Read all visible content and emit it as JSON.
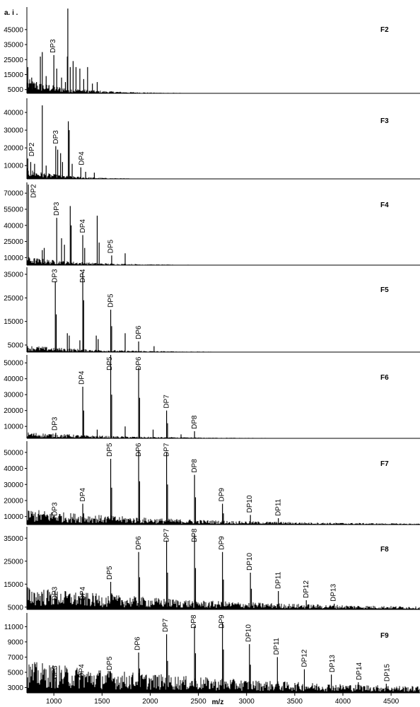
{
  "y_unit_label": "a. i .",
  "x_axis_label": "m/z",
  "colors": {
    "trace": "#000000",
    "axis": "#000000",
    "background": "#ffffff"
  },
  "x_ticks": [
    "1000",
    "1500",
    "2000",
    "2500",
    "3000",
    "3500",
    "4000",
    "4500"
  ],
  "chart_data": [
    {
      "type": "line",
      "panel_label": "F2",
      "xlim": [
        720,
        4800
      ],
      "ylim": [
        2500,
        60000
      ],
      "y_ticks": [
        5000,
        15000,
        25000,
        35000,
        45000
      ],
      "peaks": [
        {
          "x": 730,
          "y": 20000
        },
        {
          "x": 770,
          "y": 13000
        },
        {
          "x": 820,
          "y": 10000
        },
        {
          "x": 860,
          "y": 27000
        },
        {
          "x": 880,
          "y": 30000
        },
        {
          "x": 920,
          "y": 14000
        },
        {
          "x": 950,
          "y": 8000
        },
        {
          "x": 1000,
          "y": 28000
        },
        {
          "x": 1030,
          "y": 19000
        },
        {
          "x": 1080,
          "y": 13000
        },
        {
          "x": 1120,
          "y": 10000
        },
        {
          "x": 1140,
          "y": 27000
        },
        {
          "x": 1145,
          "y": 59000
        },
        {
          "x": 1170,
          "y": 20000
        },
        {
          "x": 1200,
          "y": 24000
        },
        {
          "x": 1230,
          "y": 20000
        },
        {
          "x": 1270,
          "y": 19000
        },
        {
          "x": 1310,
          "y": 12000
        },
        {
          "x": 1350,
          "y": 20000
        },
        {
          "x": 1400,
          "y": 9000
        },
        {
          "x": 1450,
          "y": 10000
        }
      ],
      "noise_peak": 10000,
      "noise_decay": 450,
      "peak_labels": [
        {
          "text": "DP3",
          "x": 990
        }
      ]
    },
    {
      "type": "line",
      "panel_label": "F3",
      "xlim": [
        720,
        4800
      ],
      "ylim": [
        2500,
        48000
      ],
      "y_ticks": [
        10000,
        20000,
        30000,
        40000
      ],
      "peaks": [
        {
          "x": 730,
          "y": 14000
        },
        {
          "x": 760,
          "y": 12000
        },
        {
          "x": 800,
          "y": 11000
        },
        {
          "x": 880,
          "y": 44000
        },
        {
          "x": 920,
          "y": 10000
        },
        {
          "x": 1020,
          "y": 21000
        },
        {
          "x": 1040,
          "y": 19000
        },
        {
          "x": 1070,
          "y": 17000
        },
        {
          "x": 1090,
          "y": 12000
        },
        {
          "x": 1150,
          "y": 35000
        },
        {
          "x": 1160,
          "y": 30000
        },
        {
          "x": 1190,
          "y": 11000
        },
        {
          "x": 1280,
          "y": 9000
        },
        {
          "x": 1330,
          "y": 6500
        },
        {
          "x": 1420,
          "y": 6000
        }
      ],
      "noise_peak": 6000,
      "noise_decay": 350,
      "peak_labels": [
        {
          "text": "DP2",
          "x": 770
        },
        {
          "text": "DP3",
          "x": 1020
        },
        {
          "text": "DP4",
          "x": 1290
        }
      ]
    },
    {
      "type": "line",
      "panel_label": "F4",
      "xlim": [
        720,
        4800
      ],
      "ylim": [
        3000,
        80000
      ],
      "y_ticks": [
        10000,
        25000,
        40000,
        55000,
        70000
      ],
      "peaks": [
        {
          "x": 735,
          "y": 78000
        },
        {
          "x": 880,
          "y": 17000
        },
        {
          "x": 900,
          "y": 19000
        },
        {
          "x": 1030,
          "y": 47000
        },
        {
          "x": 1080,
          "y": 28000
        },
        {
          "x": 1110,
          "y": 22000
        },
        {
          "x": 1170,
          "y": 58000
        },
        {
          "x": 1180,
          "y": 40000
        },
        {
          "x": 1300,
          "y": 31000
        },
        {
          "x": 1320,
          "y": 19000
        },
        {
          "x": 1450,
          "y": 49000
        },
        {
          "x": 1470,
          "y": 24000
        },
        {
          "x": 1600,
          "y": 12000
        },
        {
          "x": 1740,
          "y": 14000
        }
      ],
      "noise_peak": 8000,
      "noise_decay": 550,
      "peak_labels": [
        {
          "text": "DP2",
          "x": 790
        },
        {
          "text": "DP3",
          "x": 1030
        },
        {
          "text": "DP4",
          "x": 1300
        },
        {
          "text": "DP5",
          "x": 1590
        }
      ]
    },
    {
      "type": "line",
      "panel_label": "F5",
      "xlim": [
        720,
        4800
      ],
      "ylim": [
        2000,
        38000
      ],
      "y_ticks": [
        5000,
        15000,
        25000,
        35000
      ],
      "peaks": [
        {
          "x": 1015,
          "y": 32000
        },
        {
          "x": 1025,
          "y": 18000
        },
        {
          "x": 1140,
          "y": 10000
        },
        {
          "x": 1160,
          "y": 9000
        },
        {
          "x": 1270,
          "y": 7000
        },
        {
          "x": 1300,
          "y": 36000
        },
        {
          "x": 1310,
          "y": 24000
        },
        {
          "x": 1440,
          "y": 9000
        },
        {
          "x": 1460,
          "y": 7500
        },
        {
          "x": 1590,
          "y": 20000
        },
        {
          "x": 1600,
          "y": 13000
        },
        {
          "x": 1740,
          "y": 10000
        },
        {
          "x": 1880,
          "y": 6500
        },
        {
          "x": 2040,
          "y": 4500
        }
      ],
      "noise_peak": 3000,
      "noise_decay": 700,
      "peak_labels": [
        {
          "text": "DP3",
          "x": 1010
        },
        {
          "text": "DP4",
          "x": 1300
        },
        {
          "text": "DP5",
          "x": 1590
        },
        {
          "text": "DP6",
          "x": 1880
        }
      ]
    },
    {
      "type": "line",
      "panel_label": "F6",
      "xlim": [
        720,
        4800
      ],
      "ylim": [
        2500,
        55000
      ],
      "y_ticks": [
        10000,
        20000,
        30000,
        40000,
        50000
      ],
      "peaks": [
        {
          "x": 1020,
          "y": 6000
        },
        {
          "x": 1160,
          "y": 5000
        },
        {
          "x": 1300,
          "y": 35000
        },
        {
          "x": 1310,
          "y": 20000
        },
        {
          "x": 1450,
          "y": 8000
        },
        {
          "x": 1590,
          "y": 55000
        },
        {
          "x": 1600,
          "y": 30000
        },
        {
          "x": 1740,
          "y": 10000
        },
        {
          "x": 1880,
          "y": 47000
        },
        {
          "x": 1890,
          "y": 28000
        },
        {
          "x": 2030,
          "y": 8000
        },
        {
          "x": 2170,
          "y": 20000
        },
        {
          "x": 2180,
          "y": 12000
        },
        {
          "x": 2320,
          "y": 5000
        },
        {
          "x": 2460,
          "y": 7000
        }
      ],
      "noise_peak": 4000,
      "noise_decay": 900,
      "peak_labels": [
        {
          "text": "DP3",
          "x": 1010
        },
        {
          "text": "DP4",
          "x": 1290
        },
        {
          "text": "DP5",
          "x": 1580
        },
        {
          "text": "DP6",
          "x": 1880
        },
        {
          "text": "DP7",
          "x": 2170
        },
        {
          "text": "DP8",
          "x": 2460
        }
      ]
    },
    {
      "type": "line",
      "panel_label": "F7",
      "xlim": [
        720,
        4800
      ],
      "ylim": [
        5000,
        57000
      ],
      "y_ticks": [
        10000,
        20000,
        30000,
        40000,
        50000
      ],
      "peaks": [
        {
          "x": 1020,
          "y": 9000
        },
        {
          "x": 1300,
          "y": 18000
        },
        {
          "x": 1310,
          "y": 12000
        },
        {
          "x": 1590,
          "y": 46000
        },
        {
          "x": 1600,
          "y": 28000
        },
        {
          "x": 1880,
          "y": 51000
        },
        {
          "x": 1890,
          "y": 32000
        },
        {
          "x": 2170,
          "y": 50000
        },
        {
          "x": 2180,
          "y": 30000
        },
        {
          "x": 2460,
          "y": 36000
        },
        {
          "x": 2470,
          "y": 22000
        },
        {
          "x": 2750,
          "y": 18000
        },
        {
          "x": 2760,
          "y": 12000
        },
        {
          "x": 3040,
          "y": 11000
        },
        {
          "x": 3330,
          "y": 9000
        }
      ],
      "noise_peak": 10000,
      "noise_decay": 1500,
      "peak_labels": [
        {
          "text": "DP3",
          "x": 1010
        },
        {
          "text": "DP4",
          "x": 1300
        },
        {
          "text": "DP5",
          "x": 1580
        },
        {
          "text": "DP6",
          "x": 1880
        },
        {
          "text": "DP7",
          "x": 2170
        },
        {
          "text": "DP8",
          "x": 2460
        },
        {
          "text": "DP9",
          "x": 2740
        },
        {
          "text": "DP10",
          "x": 3030
        },
        {
          "text": "DP11",
          "x": 3330
        }
      ]
    },
    {
      "type": "line",
      "panel_label": "F8",
      "xlim": [
        720,
        4800
      ],
      "ylim": [
        4000,
        40000
      ],
      "y_ticks": [
        5000,
        15000,
        25000,
        35000
      ],
      "peaks": [
        {
          "x": 1020,
          "y": 7000
        },
        {
          "x": 1300,
          "y": 7000
        },
        {
          "x": 1590,
          "y": 16000
        },
        {
          "x": 1600,
          "y": 11000
        },
        {
          "x": 1880,
          "y": 29000
        },
        {
          "x": 1890,
          "y": 18000
        },
        {
          "x": 2170,
          "y": 34000
        },
        {
          "x": 2180,
          "y": 20000
        },
        {
          "x": 2460,
          "y": 37000
        },
        {
          "x": 2470,
          "y": 22000
        },
        {
          "x": 2750,
          "y": 29000
        },
        {
          "x": 2760,
          "y": 17000
        },
        {
          "x": 3040,
          "y": 20000
        },
        {
          "x": 3050,
          "y": 13000
        },
        {
          "x": 3330,
          "y": 12000
        },
        {
          "x": 3620,
          "y": 8000
        },
        {
          "x": 3910,
          "y": 6500
        }
      ],
      "noise_peak": 10000,
      "noise_decay": 2000,
      "peak_labels": [
        {
          "text": "DP3",
          "x": 1010
        },
        {
          "text": "DP4",
          "x": 1300
        },
        {
          "text": "DP5",
          "x": 1580
        },
        {
          "text": "DP6",
          "x": 1880
        },
        {
          "text": "DP7",
          "x": 2170
        },
        {
          "text": "DP8",
          "x": 2460
        },
        {
          "text": "DP9",
          "x": 2740
        },
        {
          "text": "DP10",
          "x": 3030
        },
        {
          "text": "DP11",
          "x": 3330
        },
        {
          "text": "DP12",
          "x": 3620
        },
        {
          "text": "DP13",
          "x": 3900
        }
      ]
    },
    {
      "type": "line",
      "panel_label": "F9",
      "xlim": [
        720,
        4800
      ],
      "ylim": [
        2300,
        12800
      ],
      "y_ticks": [
        3000,
        5000,
        7000,
        9000,
        11000
      ],
      "peaks": [
        {
          "x": 1020,
          "y": 3800
        },
        {
          "x": 1300,
          "y": 4000
        },
        {
          "x": 1590,
          "y": 5000
        },
        {
          "x": 1880,
          "y": 7600
        },
        {
          "x": 1890,
          "y": 5500
        },
        {
          "x": 2170,
          "y": 10000
        },
        {
          "x": 2180,
          "y": 6500
        },
        {
          "x": 2460,
          "y": 11100
        },
        {
          "x": 2470,
          "y": 7500
        },
        {
          "x": 2750,
          "y": 11500
        },
        {
          "x": 2760,
          "y": 8000
        },
        {
          "x": 3030,
          "y": 8700
        },
        {
          "x": 3040,
          "y": 6000
        },
        {
          "x": 3320,
          "y": 7000
        },
        {
          "x": 3600,
          "y": 5400
        },
        {
          "x": 3880,
          "y": 4700
        },
        {
          "x": 4160,
          "y": 3700
        },
        {
          "x": 4450,
          "y": 3500
        }
      ],
      "noise_peak": 4200,
      "noise_decay": 2600,
      "peak_labels": [
        {
          "text": "DP3",
          "x": 1010
        },
        {
          "text": "DP4",
          "x": 1290
        },
        {
          "text": "DP5",
          "x": 1580
        },
        {
          "text": "DP6",
          "x": 1870
        },
        {
          "text": "DP7",
          "x": 2160
        },
        {
          "text": "DP8",
          "x": 2450
        },
        {
          "text": "DP9",
          "x": 2740
        },
        {
          "text": "DP10",
          "x": 3020
        },
        {
          "text": "DP11",
          "x": 3310
        },
        {
          "text": "DP12",
          "x": 3600
        },
        {
          "text": "DP13",
          "x": 3890
        },
        {
          "text": "DP14",
          "x": 4170
        },
        {
          "text": "DP15",
          "x": 4460
        }
      ]
    }
  ]
}
